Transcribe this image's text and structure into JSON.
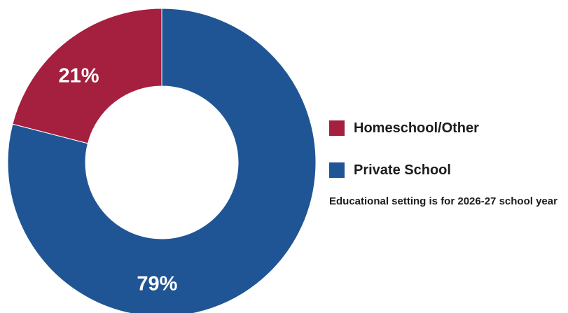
{
  "chart_data": {
    "type": "pie",
    "style": "donut",
    "categories": [
      "Homeschool/Other",
      "Private School"
    ],
    "values": [
      21,
      79
    ],
    "value_labels": [
      "21%",
      "79%"
    ],
    "colors": [
      "#a51f3f",
      "#1f5594"
    ],
    "legend": {
      "placement": "right",
      "entries": [
        "Homeschool/Other",
        "Private School"
      ]
    },
    "note": "Educational setting is for 2026-27 school year"
  }
}
